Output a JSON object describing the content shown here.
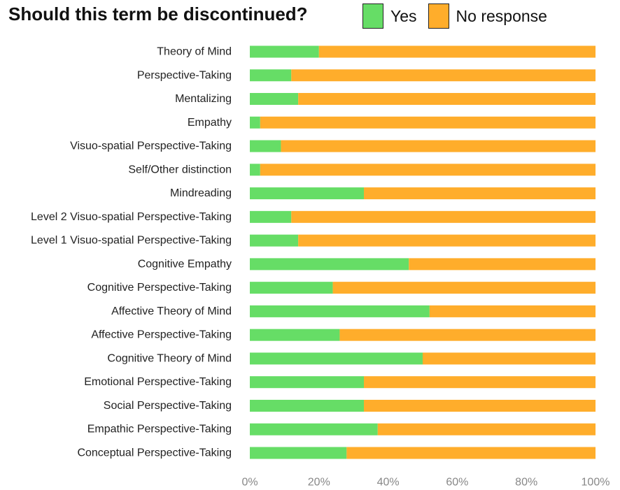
{
  "chart_data": {
    "type": "bar",
    "orientation": "horizontal",
    "stacked": "percent",
    "title": "Should this term be discontinued?",
    "xlabel": "",
    "ylabel": "",
    "xlim": [
      0,
      100
    ],
    "x_tick_labels": [
      "0%",
      "20%",
      "40%",
      "60%",
      "80%",
      "100%"
    ],
    "x_ticks": [
      0,
      20,
      40,
      60,
      80,
      100
    ],
    "grid": false,
    "legend_position": "top-right",
    "categories": [
      "Theory of Mind",
      "Perspective-Taking",
      "Mentalizing",
      "Empathy",
      "Visuo-spatial Perspective-Taking",
      "Self/Other distinction",
      "Mindreading",
      "Level 2 Visuo-spatial Perspective-Taking",
      "Level 1 Visuo-spatial Perspective-Taking",
      "Cognitive Empathy",
      "Cognitive Perspective-Taking",
      "Affective Theory of Mind",
      "Affective Perspective-Taking",
      "Cognitive Theory of Mind",
      "Emotional Perspective-Taking",
      "Social Perspective-Taking",
      "Empathic Perspective-Taking",
      "Conceptual Perspective-Taking"
    ],
    "series": [
      {
        "name": "Yes",
        "color": "#66dd66",
        "values": [
          20,
          12,
          14,
          3,
          9,
          3,
          33,
          12,
          14,
          46,
          24,
          52,
          26,
          50,
          33,
          33,
          37,
          28
        ]
      },
      {
        "name": "No response",
        "color": "#ffad2b",
        "values": [
          80,
          88,
          86,
          97,
          91,
          97,
          67,
          88,
          86,
          54,
          76,
          48,
          74,
          50,
          67,
          67,
          63,
          72
        ]
      }
    ],
    "tick_label_color": "#888888"
  }
}
